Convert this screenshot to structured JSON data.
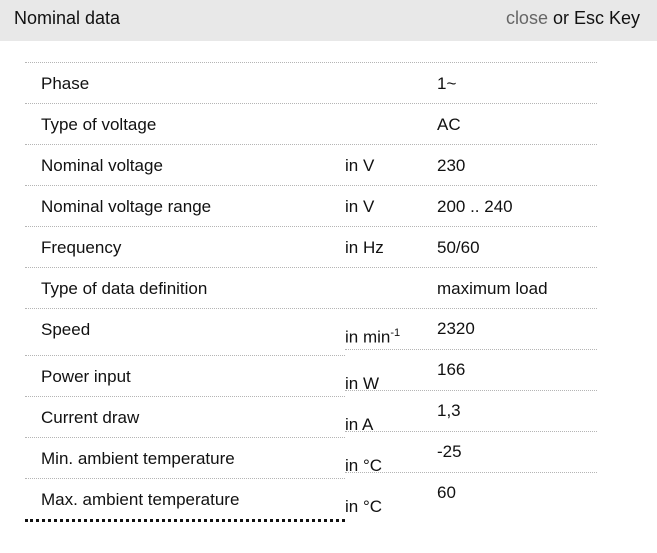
{
  "header": {
    "title": "Nominal data",
    "close_label": "close",
    "close_suffix": " or Esc Key"
  },
  "rows": [
    {
      "label": "Phase",
      "unit": "",
      "value": "1~"
    },
    {
      "label": "Type of voltage",
      "unit": "",
      "value": "AC"
    },
    {
      "label": "Nominal voltage",
      "unit": "in V",
      "value": "230"
    },
    {
      "label": "Nominal voltage range",
      "unit": "in V",
      "value": "200 .. 240"
    },
    {
      "label": "Frequency",
      "unit": "in Hz",
      "value": "50/60"
    },
    {
      "label": "Type of data definition",
      "unit": "",
      "value": "maximum load"
    },
    {
      "label": "Speed",
      "unit": "in min",
      "unit_sup": "-1",
      "value": "2320"
    },
    {
      "label": "Power input",
      "unit": "in W",
      "value": "166"
    },
    {
      "label": "Current draw",
      "unit": "in A",
      "value": "1,3"
    },
    {
      "label": "Min. ambient temperature",
      "unit": "in °C",
      "value": "-25"
    },
    {
      "label": "Max. ambient temperature",
      "unit": "in °C",
      "value": "60"
    }
  ]
}
